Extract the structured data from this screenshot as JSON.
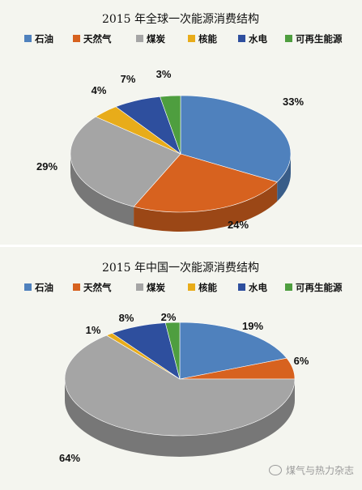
{
  "colors": {
    "石油": "#4f81bd",
    "天然气": "#d7621f",
    "煤炭": "#a5a5a5",
    "核能": "#e8ac1a",
    "水电": "#2e4f9e",
    "可再生能源": "#4e9e3f"
  },
  "chart_data": [
    {
      "type": "pie",
      "title": "2015 年全球一次能源消费结构",
      "legend": [
        "石油",
        "天然气",
        "煤炭",
        "核能",
        "水电",
        "可再生能源"
      ],
      "legend_position": "top",
      "slices": [
        {
          "label": "石油",
          "value": 33,
          "text": "33%"
        },
        {
          "label": "天然气",
          "value": 24,
          "text": "24%"
        },
        {
          "label": "煤炭",
          "value": 29,
          "text": "29%"
        },
        {
          "label": "核能",
          "value": 4,
          "text": "4%"
        },
        {
          "label": "水电",
          "value": 7,
          "text": "7%"
        },
        {
          "label": "可再生能源",
          "value": 3,
          "text": "3%"
        }
      ]
    },
    {
      "type": "pie",
      "title": "2015 年中国一次能源消费结构",
      "legend": [
        "石油",
        "天然气",
        "煤炭",
        "核能",
        "水电",
        "可再生能源"
      ],
      "legend_position": "top",
      "slices": [
        {
          "label": "石油",
          "value": 19,
          "text": "19%"
        },
        {
          "label": "天然气",
          "value": 6,
          "text": "6%"
        },
        {
          "label": "煤炭",
          "value": 64,
          "text": "64%"
        },
        {
          "label": "核能",
          "value": 1,
          "text": "1%"
        },
        {
          "label": "水电",
          "value": 8,
          "text": "8%"
        },
        {
          "label": "可再生能源",
          "value": 2,
          "text": "2%"
        }
      ]
    }
  ],
  "watermark": "煤气与热力杂志"
}
